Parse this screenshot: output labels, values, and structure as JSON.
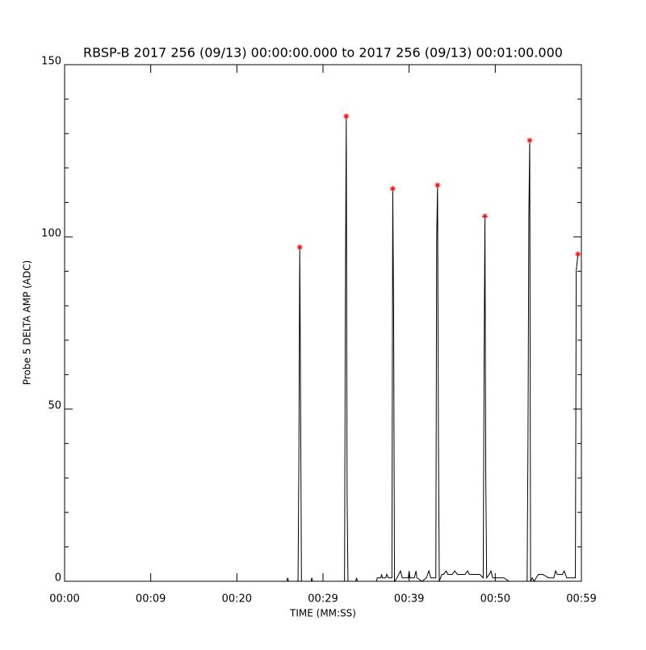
{
  "chart_data": {
    "type": "line",
    "title": "RBSP-B 2017 256 (09/13) 00:00:00.000 to 2017 256 (09/13) 00:01:00.000",
    "x_label": "TIME (MM:SS)",
    "y_label": "Probe 5 DELTA AMP (ADC)",
    "xlim": [
      0,
      60
    ],
    "xticks": [
      {
        "value": 0,
        "label": "00:00"
      },
      {
        "value": 10,
        "label": "00:09"
      },
      {
        "value": 20,
        "label": "00:20"
      },
      {
        "value": 30,
        "label": "00:29"
      },
      {
        "value": 40,
        "label": "00:39"
      },
      {
        "value": 50,
        "label": "00:50"
      },
      {
        "value": 60,
        "label": "00:59"
      }
    ],
    "ylim": [
      0,
      150
    ],
    "yticks": [
      0,
      50,
      100,
      150
    ],
    "yminorticks": [
      10,
      20,
      30,
      40,
      60,
      70,
      80,
      90,
      110,
      120,
      130,
      140
    ],
    "series": [
      {
        "color": "#000000",
        "x": [
          0,
          25.8,
          25.9,
          26.0,
          27.1,
          27.2,
          27.3,
          27.4,
          27.5,
          28.6,
          28.7,
          28.8,
          32.5,
          32.6,
          32.7,
          32.8,
          32.9,
          33.8,
          33.9,
          34.0,
          36.2,
          36.3,
          36.7,
          36.8,
          36.9,
          37.3,
          37.4,
          37.6,
          38.0,
          38.1,
          38.2,
          38.3,
          38.6,
          39.0,
          39.2,
          39.9,
          40.0,
          40.1,
          40.6,
          40.8,
          40.9,
          41.5,
          42.0,
          42.3,
          42.5,
          43.1,
          43.2,
          43.3,
          43.4,
          43.5,
          43.8,
          44.0,
          44.3,
          44.5,
          45.0,
          45.3,
          45.6,
          46.5,
          46.8,
          47.0,
          48.2,
          48.6,
          48.7,
          48.8,
          48.9,
          49.0,
          49.3,
          49.5,
          49.7,
          50.5,
          51.0,
          51.6,
          53.7,
          53.8,
          53.9,
          54.0,
          54.1,
          54.3,
          54.5,
          55.0,
          55.5,
          56.2,
          56.8,
          57.0,
          57.2,
          57.8,
          58.0,
          58.3,
          59.3,
          59.4,
          59.6,
          59.7
        ],
        "values": [
          0,
          0,
          1,
          0,
          0,
          35,
          97,
          52,
          0,
          0,
          1,
          0,
          0,
          83,
          135,
          24,
          0,
          0,
          1,
          0,
          0,
          1,
          1,
          2,
          1,
          1,
          2,
          1,
          1,
          114,
          77,
          0,
          1,
          3,
          1,
          1,
          3,
          1,
          1,
          3,
          1,
          0,
          1,
          3,
          1,
          1,
          100,
          115,
          43,
          0,
          2,
          2,
          3,
          2,
          2,
          3,
          2,
          2,
          3,
          2,
          2,
          1,
          61,
          106,
          30,
          1,
          2,
          3,
          1,
          1,
          1,
          0,
          0,
          41,
          106,
          128,
          0,
          1,
          0,
          2,
          2,
          1,
          1,
          3,
          2,
          2,
          3,
          1,
          1,
          90,
          95,
          95
        ]
      },
      {
        "color": "#ff0000",
        "marker": "asterisk",
        "x": [
          27.3,
          32.7,
          38.1,
          43.3,
          48.8,
          54.0,
          59.6
        ],
        "values": [
          97,
          135,
          114,
          115,
          106,
          128,
          95
        ]
      }
    ]
  }
}
